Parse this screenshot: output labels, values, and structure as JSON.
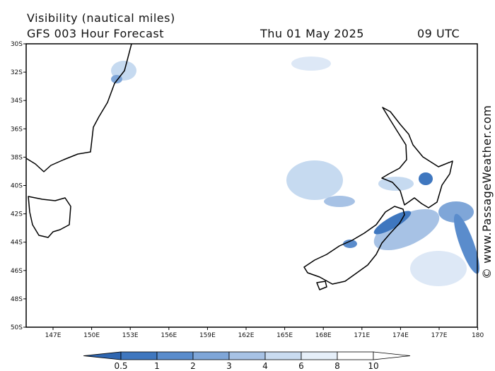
{
  "header": {
    "title": "Visibility (nautical miles)",
    "subtitle": "GFS 003 Hour Forecast",
    "date": "Thu 01 May 2025",
    "time": "09 UTC"
  },
  "credit": "© www.PassageWeather.com",
  "map": {
    "lat_labels": [
      "30S",
      "32S",
      "34S",
      "36S",
      "38S",
      "40S",
      "42S",
      "44S",
      "46S",
      "48S",
      "50S"
    ],
    "lon_labels": [
      "147E",
      "150E",
      "153E",
      "156E",
      "159E",
      "162E",
      "165E",
      "168E",
      "171E",
      "174E",
      "177E",
      "180"
    ]
  },
  "colorbar": {
    "labels": [
      "0.5",
      "1",
      "2",
      "3",
      "4",
      "6",
      "8",
      "10"
    ]
  }
}
